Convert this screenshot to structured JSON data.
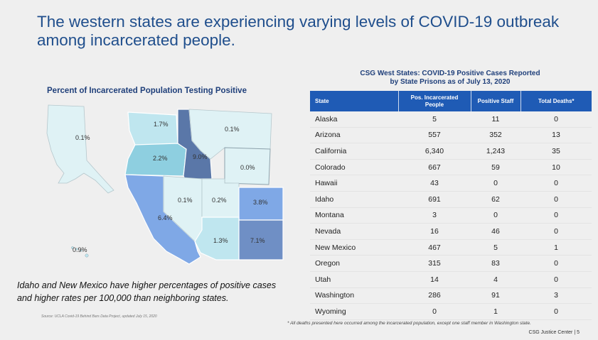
{
  "slide": {
    "title": "The western states are experiencing varying levels of COVID-19 outbreak among incarcerated people.",
    "map_title": "Percent of Incarcerated Population Testing Positive",
    "caption": "Idaho and New Mexico have higher percentages of positive cases and higher rates per 100,000 than neighboring states.",
    "source": "Source: UCLA Covid-19 Behind Bars Data Project, updated July 15, 2020",
    "footnote": "* All deaths presented here occurred among the incarcerated population, except one staff member in Washington state.",
    "brand": "CSG Justice Center | 5"
  },
  "map": {
    "labels": {
      "alaska": "0.1%",
      "hawaii": "0.9%",
      "washington": "1.7%",
      "oregon": "2.2%",
      "california": "6.4%",
      "idaho": "9.0%",
      "montana": "0.1%",
      "wyoming": "0.0%",
      "nevada": "0.1%",
      "utah": "0.2%",
      "colorado": "3.8%",
      "arizona": "1.3%",
      "new_mexico": "7.1%"
    },
    "colors": {
      "low": "#dff2f5",
      "light": "#bfe6ef",
      "mid": "#8ecfe0",
      "blue": "#7fa8e6",
      "slate": "#6f8fc5",
      "dark": "#5a77a8"
    }
  },
  "table": {
    "title_line1": "CSG West States: COVID-19 Positive Cases Reported",
    "title_line2": "by State Prisons as of July 13, 2020",
    "headers": [
      "State",
      "Pos. Incarcerated People",
      "Positive Staff",
      "Total Deaths*"
    ],
    "rows": [
      [
        "Alaska",
        "5",
        "11",
        "0"
      ],
      [
        "Arizona",
        "557",
        "352",
        "13"
      ],
      [
        "California",
        "6,340",
        "1,243",
        "35"
      ],
      [
        "Colorado",
        "667",
        "59",
        "10"
      ],
      [
        "Hawaii",
        "43",
        "0",
        "0"
      ],
      [
        "Idaho",
        "691",
        "62",
        "0"
      ],
      [
        "Montana",
        "3",
        "0",
        "0"
      ],
      [
        "Nevada",
        "16",
        "46",
        "0"
      ],
      [
        "New Mexico",
        "467",
        "5",
        "1"
      ],
      [
        "Oregon",
        "315",
        "83",
        "0"
      ],
      [
        "Utah",
        "14",
        "4",
        "0"
      ],
      [
        "Washington",
        "286",
        "91",
        "3"
      ],
      [
        "Wyoming",
        "0",
        "1",
        "0"
      ]
    ]
  }
}
